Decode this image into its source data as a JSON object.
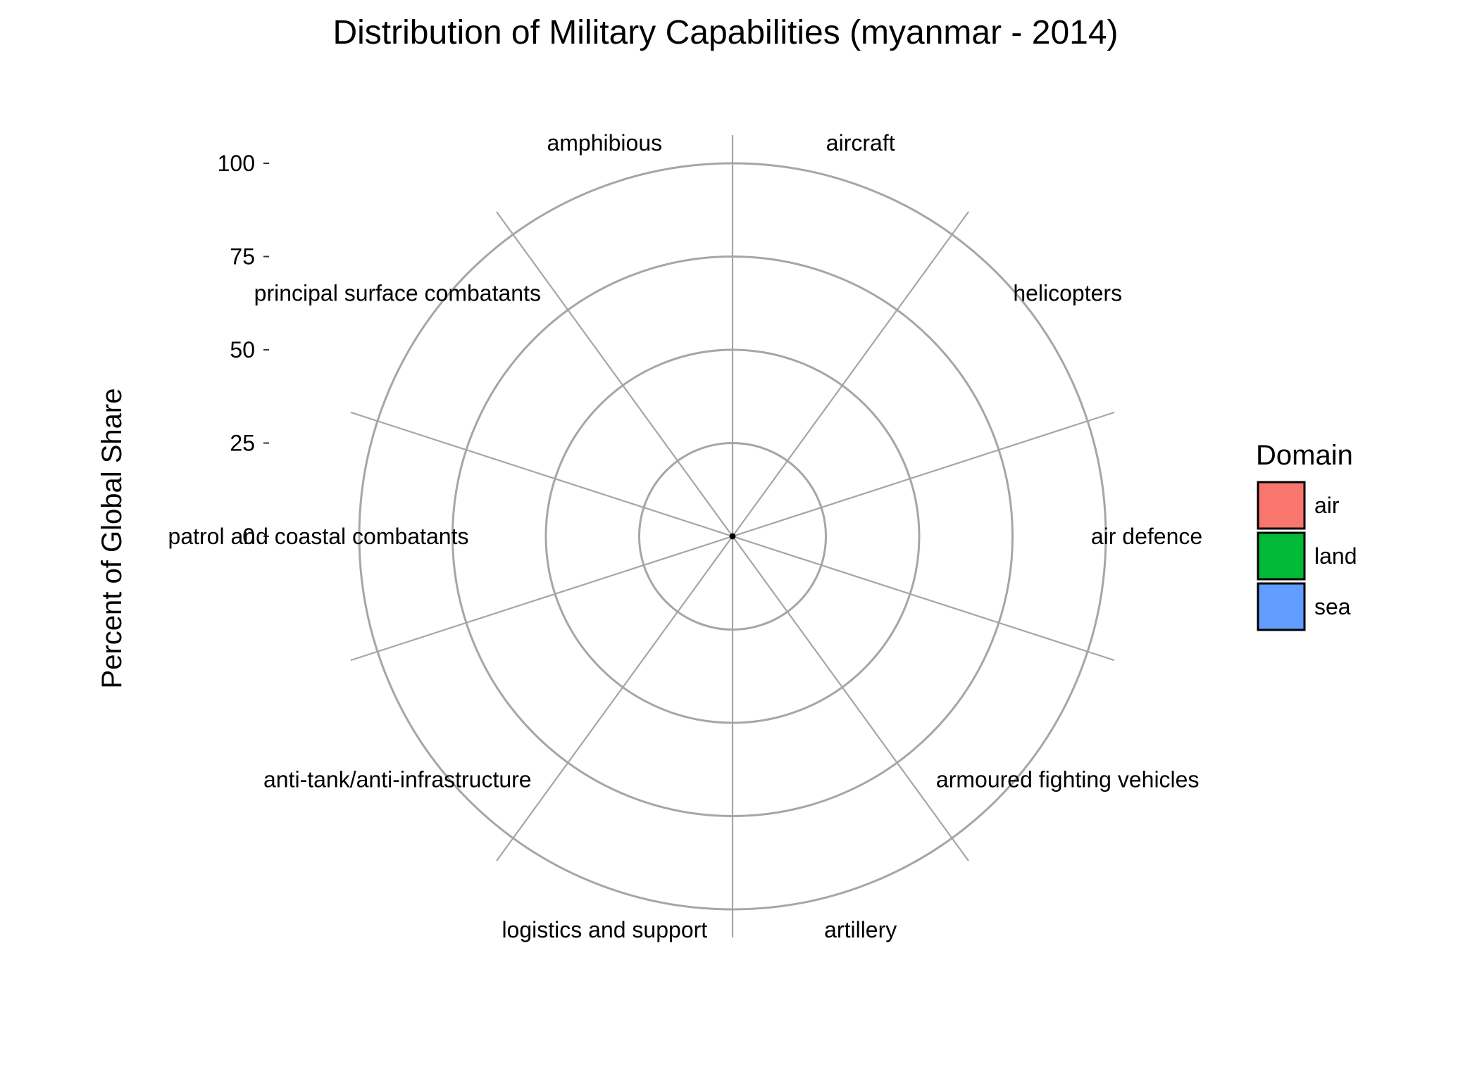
{
  "chart_data": {
    "type": "bar",
    "coord": "polar",
    "title": "Distribution of Military Capabilities (myanmar - 2014)",
    "xlabel": "",
    "ylabel": "Percent of Global Share",
    "ylim": [
      0,
      100
    ],
    "yticks": [
      0,
      25,
      50,
      75,
      100
    ],
    "grid": true,
    "categories": [
      "aircraft",
      "helicopters",
      "air defence",
      "armoured fighting vehicles",
      "artillery",
      "logistics and support",
      "anti-tank/anti-infrastructure",
      "patrol and coastal combatants",
      "principal surface combatants",
      "amphibious"
    ],
    "category_domain": [
      "air",
      "air",
      "land",
      "land",
      "land",
      "land",
      "land",
      "sea",
      "sea",
      "sea"
    ],
    "values": [
      0.5,
      0.5,
      0.5,
      0.5,
      0.5,
      0.5,
      0.5,
      0.5,
      0.5,
      0.5
    ],
    "legend": {
      "title": "Domain",
      "position": "right",
      "entries": [
        {
          "name": "air",
          "color": "#F8766D"
        },
        {
          "name": "land",
          "color": "#00BA38"
        },
        {
          "name": "sea",
          "color": "#619CFF"
        }
      ]
    }
  }
}
